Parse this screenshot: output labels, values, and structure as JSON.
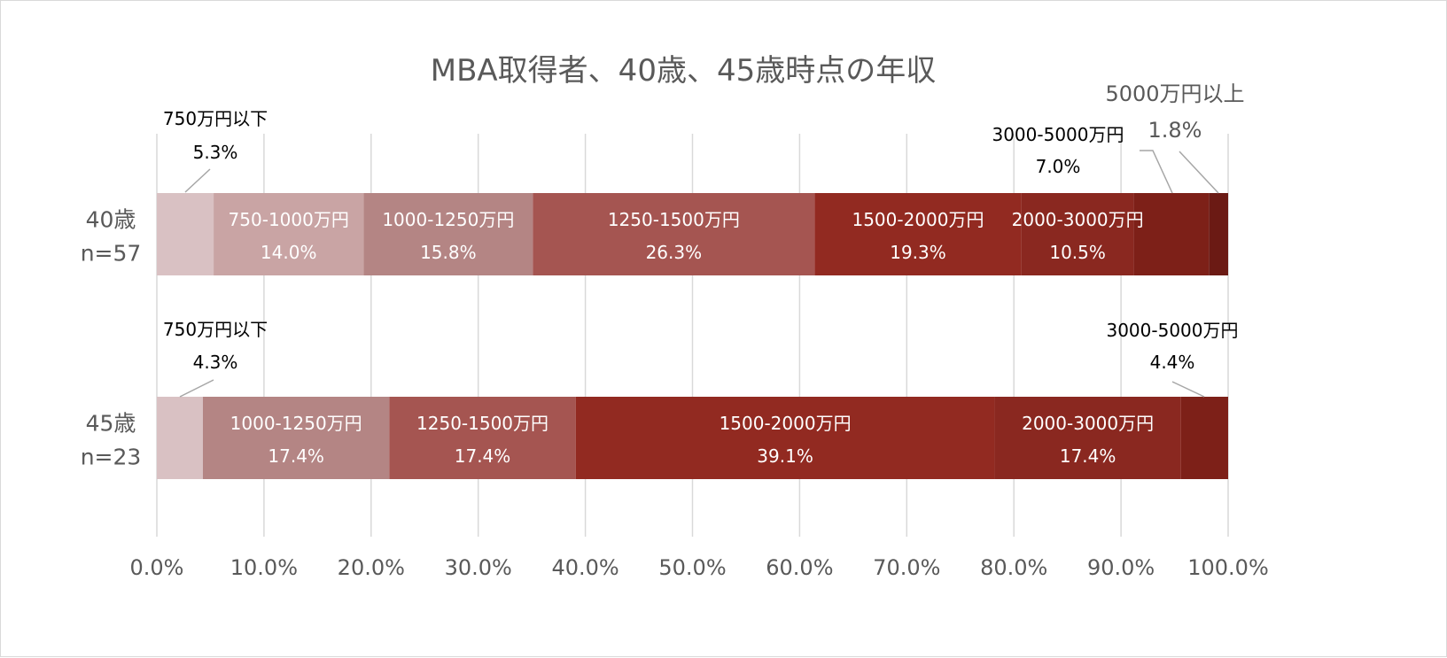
{
  "chart_data": {
    "type": "bar",
    "orientation": "horizontal",
    "stacked": true,
    "title": "MBA取得者、40歳、45歳時点の年収",
    "xlim": [
      0,
      100
    ],
    "xticks": [
      "0.0%",
      "10.0%",
      "20.0%",
      "30.0%",
      "40.0%",
      "50.0%",
      "60.0%",
      "70.0%",
      "80.0%",
      "90.0%",
      "100.0%"
    ],
    "grid": true,
    "legend": "none",
    "categories": [
      {
        "label": "40歳",
        "sublabel": "n=57"
      },
      {
        "label": "45歳",
        "sublabel": "n=23"
      }
    ],
    "segment_names": [
      "750万円以下",
      "750-1000万円",
      "1000-1250万円",
      "1250-1500万円",
      "1500-2000万円",
      "2000-3000万円",
      "3000-5000万円",
      "5000万円以上"
    ],
    "colors": [
      "#d9c1c3",
      "#c9a4a4",
      "#b48584",
      "#a55551",
      "#922a21",
      "#8a2820",
      "#7d2018",
      "#6b1a14"
    ],
    "series": [
      {
        "name": "750万円以下",
        "values": [
          5.3,
          4.3
        ],
        "labels": [
          "5.3%",
          "4.3%"
        ]
      },
      {
        "name": "750-1000万円",
        "values": [
          14.0,
          0
        ],
        "labels": [
          "14.0%",
          ""
        ]
      },
      {
        "name": "1000-1250万円",
        "values": [
          15.8,
          17.4
        ],
        "labels": [
          "15.8%",
          "17.4%"
        ]
      },
      {
        "name": "1250-1500万円",
        "values": [
          26.3,
          17.4
        ],
        "labels": [
          "26.3%",
          "17.4%"
        ]
      },
      {
        "name": "1500-2000万円",
        "values": [
          19.3,
          39.1
        ],
        "labels": [
          "19.3%",
          "39.1%"
        ]
      },
      {
        "name": "2000-3000万円",
        "values": [
          10.5,
          17.4
        ],
        "labels": [
          "10.5%",
          "17.4%"
        ]
      },
      {
        "name": "3000-5000万円",
        "values": [
          7.0,
          4.4
        ],
        "labels": [
          "7.0%",
          "4.4%"
        ]
      },
      {
        "name": "5000万円以上",
        "values": [
          1.8,
          0
        ],
        "labels": [
          "1.8%",
          ""
        ]
      }
    ]
  }
}
